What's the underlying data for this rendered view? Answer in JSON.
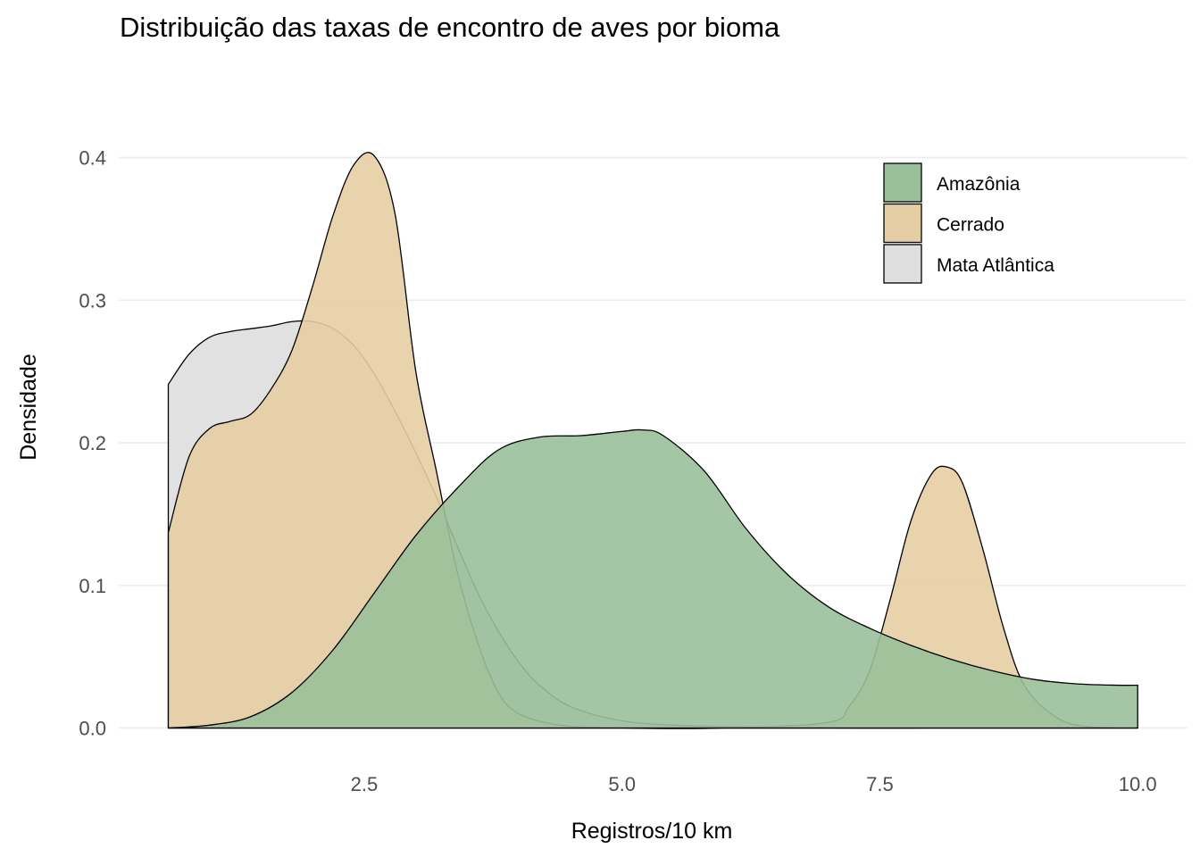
{
  "chart_data": {
    "type": "area",
    "subtype": "density",
    "title": "Distribuição das taxas de encontro de aves por bioma",
    "xlabel": "Registros/10 km",
    "ylabel": "Densidade",
    "xlim": [
      0.6,
      10.0
    ],
    "ylim": [
      0.0,
      0.4
    ],
    "x_ticks": [
      2.5,
      5.0,
      7.5,
      10.0
    ],
    "x_tick_labels": [
      "2.5",
      "5.0",
      "7.5",
      "10.0"
    ],
    "y_ticks": [
      0.0,
      0.1,
      0.2,
      0.3,
      0.4
    ],
    "y_tick_labels": [
      "0.0",
      "0.1",
      "0.2",
      "0.3",
      "0.4"
    ],
    "grid": true,
    "legend_position": "top-right",
    "draw_order": [
      "Mata Atlântica",
      "Cerrado",
      "Amazônia"
    ],
    "series": [
      {
        "name": "Amazônia",
        "color": "#9ac09a",
        "x": [
          0.6,
          1.0,
          1.4,
          1.8,
          2.2,
          2.6,
          3.0,
          3.4,
          3.8,
          4.2,
          4.6,
          5.0,
          5.2,
          5.4,
          5.8,
          6.2,
          6.6,
          7.0,
          7.4,
          7.8,
          8.2,
          8.6,
          9.0,
          9.4,
          9.8,
          10.0
        ],
        "y": [
          0.0,
          0.002,
          0.008,
          0.025,
          0.055,
          0.095,
          0.135,
          0.168,
          0.195,
          0.204,
          0.205,
          0.208,
          0.209,
          0.205,
          0.18,
          0.14,
          0.108,
          0.085,
          0.07,
          0.058,
          0.048,
          0.04,
          0.034,
          0.031,
          0.03,
          0.03
        ]
      },
      {
        "name": "Cerrado",
        "color": "#e6cea4",
        "x": [
          0.6,
          0.8,
          1.0,
          1.2,
          1.4,
          1.6,
          1.8,
          2.0,
          2.2,
          2.4,
          2.6,
          2.8,
          3.0,
          3.2,
          3.4,
          3.6,
          3.8,
          4.0,
          4.4,
          5.0,
          6.0,
          7.0,
          7.2,
          7.4,
          7.6,
          7.8,
          8.0,
          8.15,
          8.3,
          8.5,
          8.7,
          8.9,
          9.2,
          9.5,
          10.0
        ],
        "y": [
          0.137,
          0.19,
          0.21,
          0.215,
          0.22,
          0.238,
          0.265,
          0.31,
          0.36,
          0.395,
          0.401,
          0.36,
          0.25,
          0.18,
          0.11,
          0.06,
          0.025,
          0.01,
          0.002,
          0.0,
          0.0,
          0.004,
          0.015,
          0.04,
          0.09,
          0.145,
          0.178,
          0.183,
          0.172,
          0.125,
          0.07,
          0.03,
          0.008,
          0.001,
          0.0
        ]
      },
      {
        "name": "Mata Atlântica",
        "color": "#dedede",
        "x": [
          0.6,
          0.8,
          1.0,
          1.2,
          1.4,
          1.6,
          1.8,
          2.0,
          2.2,
          2.4,
          2.6,
          2.8,
          3.0,
          3.2,
          3.4,
          3.6,
          3.8,
          4.0,
          4.2,
          4.5,
          5.0,
          5.5,
          6.0,
          7.0,
          8.0,
          9.0,
          10.0
        ],
        "y": [
          0.241,
          0.262,
          0.274,
          0.278,
          0.28,
          0.282,
          0.285,
          0.285,
          0.28,
          0.268,
          0.248,
          0.222,
          0.193,
          0.162,
          0.128,
          0.095,
          0.068,
          0.046,
          0.03,
          0.015,
          0.005,
          0.002,
          0.001,
          0.0,
          0.0,
          0.0,
          0.0
        ]
      }
    ]
  }
}
